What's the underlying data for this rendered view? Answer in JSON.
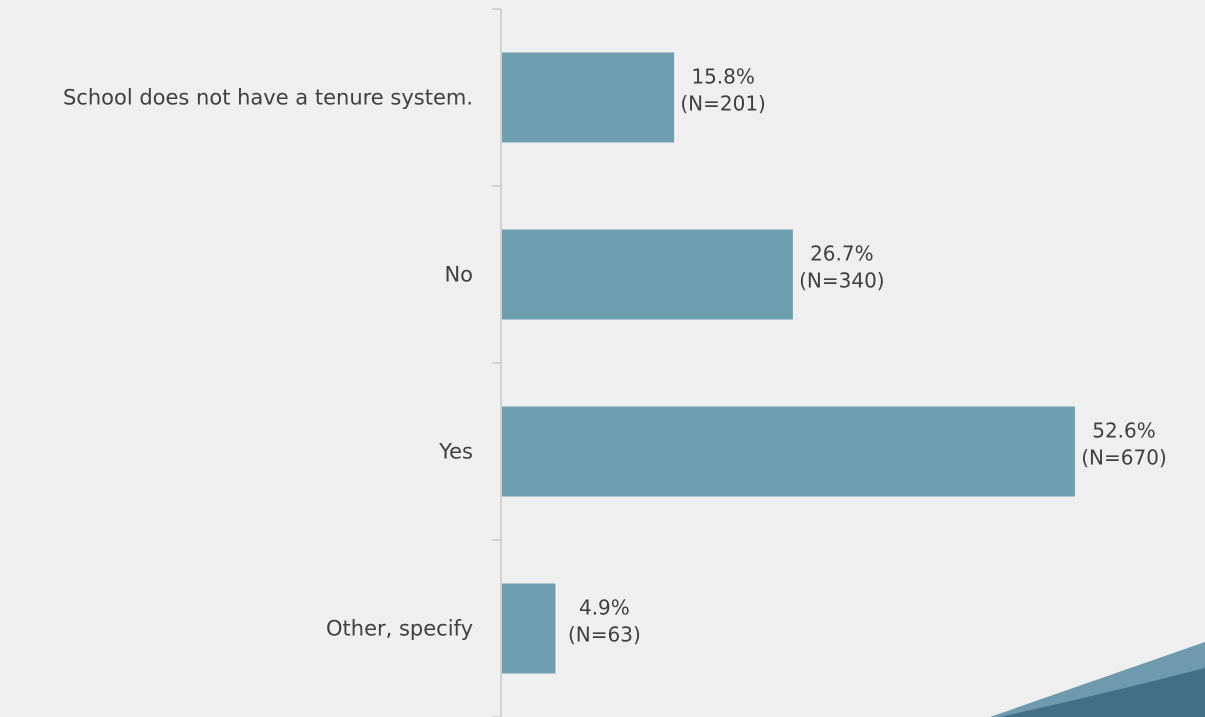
{
  "colors": {
    "background": "#efefef",
    "bar": "#6e9fb0",
    "axis": "#c9c9c9",
    "text": "#404040",
    "corner_accent": "#426f83",
    "corner_accent_light": "#6f9aad"
  },
  "chart_data": {
    "type": "bar",
    "orientation": "horizontal",
    "title": "",
    "xlabel": "",
    "ylabel": "",
    "categories": [
      "School does not have a tenure system.",
      "No",
      "Yes",
      "Other, specify"
    ],
    "series": [
      {
        "values": [
          15.8,
          26.7,
          52.6,
          4.9
        ],
        "counts": [
          201,
          340,
          670,
          63
        ],
        "labels": [
          [
            "15.8%",
            "(N=201)"
          ],
          [
            "26.7%",
            "(N=340)"
          ],
          [
            "52.6%",
            "(N=670)"
          ],
          [
            "4.9%",
            "(N=63)"
          ]
        ]
      }
    ],
    "xlim": [
      0,
      52.6
    ],
    "grid": false,
    "legend": "none"
  }
}
